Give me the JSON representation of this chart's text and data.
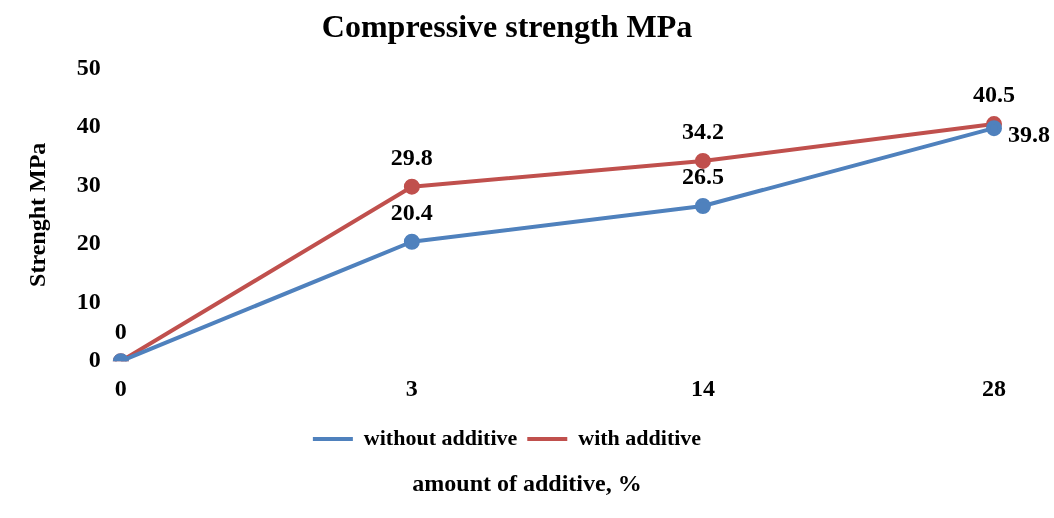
{
  "chart_data": {
    "type": "line",
    "title": "Compressive strength MPa",
    "xlabel": "amount of additive, %",
    "ylabel": "Strenght MPa",
    "categories": [
      "0",
      "3",
      "14",
      "28"
    ],
    "series": [
      {
        "name": "without additive",
        "color": "#4f81bd",
        "values": [
          0,
          20.4,
          26.5,
          39.8
        ],
        "value_labels": [
          null,
          "20.4",
          "26.5",
          "39.8"
        ]
      },
      {
        "name": "with additive",
        "color": "#c0504d",
        "values": [
          0,
          29.8,
          34.2,
          40.5
        ],
        "value_labels": [
          "0",
          "29.8",
          "34.2",
          "40.5"
        ]
      }
    ],
    "ylim": [
      0,
      50
    ],
    "yticks": [
      0,
      10,
      20,
      30,
      40,
      50
    ],
    "grid": false,
    "legend": "bottom",
    "marker": "circle",
    "line_style": "solid"
  }
}
